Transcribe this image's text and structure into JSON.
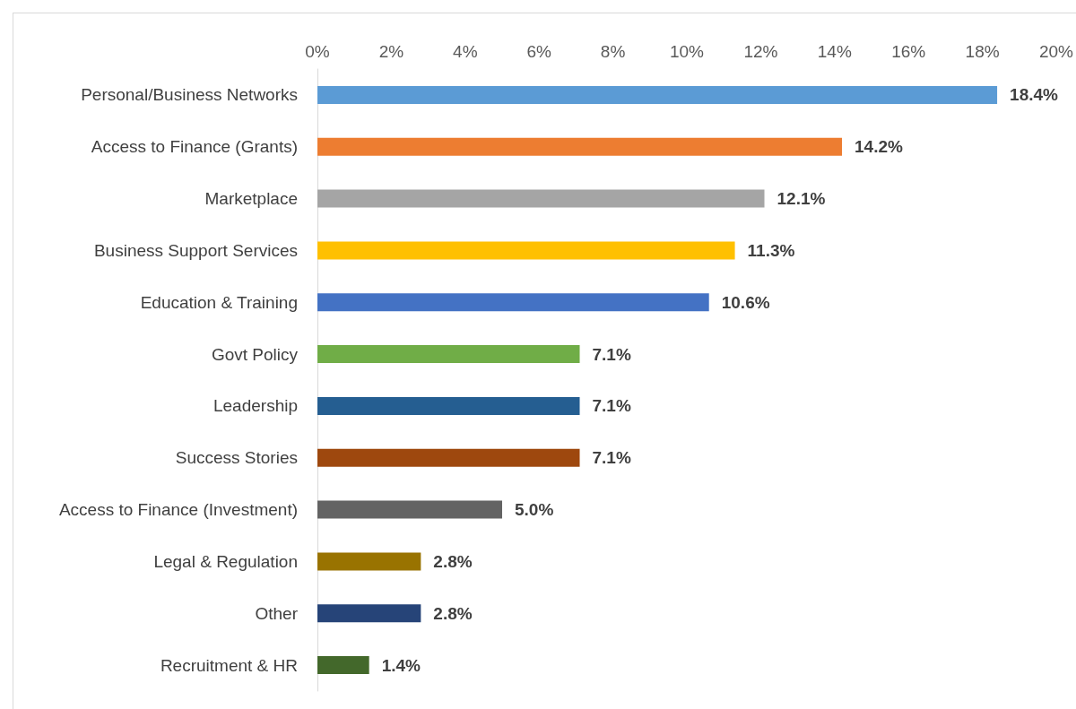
{
  "chart_data": {
    "type": "bar",
    "orientation": "horizontal",
    "categories": [
      "Personal/Business Networks",
      "Access to Finance (Grants)",
      "Marketplace",
      "Business Support Services",
      "Education & Training",
      "Govt Policy",
      "Leadership",
      "Success Stories",
      "Access to Finance (Investment)",
      "Legal & Regulation",
      "Other",
      "Recruitment & HR"
    ],
    "values": [
      18.4,
      14.2,
      12.1,
      11.3,
      10.6,
      7.1,
      7.1,
      7.1,
      5.0,
      2.8,
      2.8,
      1.4
    ],
    "colors": [
      "#5b9bd5",
      "#ed7d31",
      "#a5a5a5",
      "#ffc000",
      "#4472c4",
      "#70ad47",
      "#255e91",
      "#9e480e",
      "#636363",
      "#997300",
      "#264478",
      "#43682b"
    ],
    "value_labels": [
      "18.4%",
      "14.2%",
      "12.1%",
      "11.3%",
      "10.6%",
      "7.1%",
      "7.1%",
      "7.1%",
      "5.0%",
      "2.8%",
      "2.8%",
      "1.4%"
    ],
    "xlim": [
      0,
      20
    ],
    "xticks": [
      {
        "value": 0,
        "label": "0%"
      },
      {
        "value": 2,
        "label": "2%"
      },
      {
        "value": 4,
        "label": "4%"
      },
      {
        "value": 6,
        "label": "6%"
      },
      {
        "value": 8,
        "label": "8%"
      },
      {
        "value": 10,
        "label": "10%"
      },
      {
        "value": 12,
        "label": "12%"
      },
      {
        "value": 14,
        "label": "14%"
      },
      {
        "value": 16,
        "label": "16%"
      },
      {
        "value": 18,
        "label": "18%"
      },
      {
        "value": 20,
        "label": "20%"
      }
    ],
    "grid": false
  }
}
